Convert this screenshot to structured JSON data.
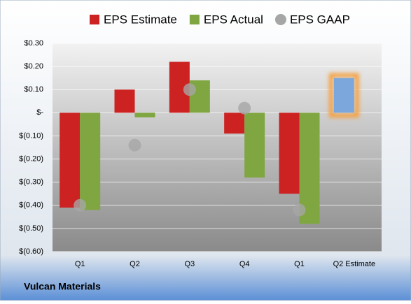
{
  "chart_data": {
    "type": "bar",
    "title": "Vulcan Materials",
    "categories": [
      "Q1",
      "Q2",
      "Q3",
      "Q4",
      "Q1",
      "Q2 Estimate"
    ],
    "series": [
      {
        "name": "EPS Estimate",
        "color": "#cc2222",
        "values": [
          -0.41,
          0.1,
          0.22,
          -0.09,
          -0.35,
          0.15
        ],
        "point_colors": [
          null,
          null,
          null,
          null,
          null,
          "#7ba7dc"
        ]
      },
      {
        "name": "EPS Actual",
        "color": "#7fa640",
        "values": [
          -0.42,
          -0.02,
          0.14,
          -0.28,
          -0.48,
          null
        ]
      },
      {
        "name": "EPS GAAP",
        "color": "#a6a6a6",
        "marker": "circle",
        "values": [
          -0.4,
          -0.14,
          0.1,
          0.02,
          -0.42,
          null
        ]
      }
    ],
    "ylim": [
      -0.6,
      0.3
    ],
    "yticks": [
      {
        "value": 0.3,
        "label": "$0.30"
      },
      {
        "value": 0.2,
        "label": "$0.20"
      },
      {
        "value": 0.1,
        "label": "$0.10"
      },
      {
        "value": 0,
        "label": "$-"
      },
      {
        "value": -0.1,
        "label": "$(0.10)"
      },
      {
        "value": -0.2,
        "label": "$(0.20)"
      },
      {
        "value": -0.3,
        "label": "$(0.30)"
      },
      {
        "value": -0.4,
        "label": "$(0.40)"
      },
      {
        "value": -0.5,
        "label": "$(0.50)"
      },
      {
        "value": -0.6,
        "label": "$(0.60)"
      }
    ],
    "grid": true,
    "legend": "top"
  }
}
